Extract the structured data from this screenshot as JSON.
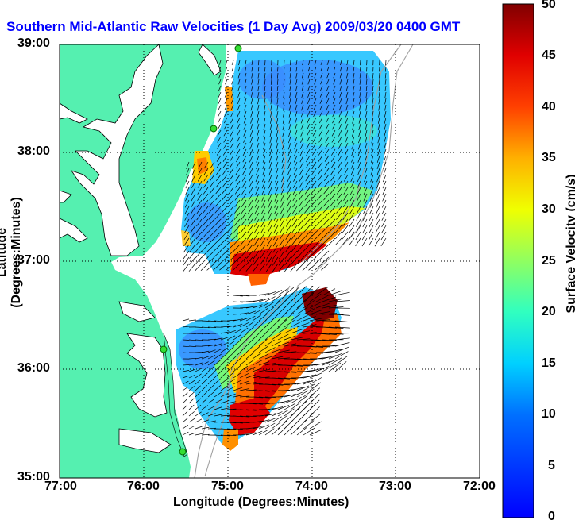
{
  "title": "Southern Mid-Atlantic Raw Velocities (1 Day Avg) 2009/03/20 0400 GMT",
  "map": {
    "x_label": "Longitude (Degrees:Minutes)",
    "y_label": "Latitude (Degrees:Minutes)",
    "x_ticks": [
      "77:00",
      "76:00",
      "75:00",
      "74:00",
      "73:00",
      "72:00"
    ],
    "y_ticks": [
      "39:00",
      "38:00",
      "37:00",
      "36:00",
      "35:00"
    ],
    "lon_range": [
      -77,
      -72
    ],
    "lat_range": [
      35,
      39
    ],
    "land_color": "#55f0b0",
    "grid": "dotted"
  },
  "colorbar": {
    "label": "Surface Velocity (cm/s)",
    "ticks": [
      "50",
      "45",
      "40",
      "35",
      "30",
      "25",
      "20",
      "15",
      "10",
      "5",
      "0"
    ],
    "range": [
      0,
      50
    ],
    "colormap": "jet"
  },
  "stations": [
    {
      "lon": -74.88,
      "lat": 39.0
    },
    {
      "lon": -75.15,
      "lat": 38.25
    },
    {
      "lon": -75.75,
      "lat": 36.2
    },
    {
      "lon": -75.55,
      "lat": 35.25
    }
  ]
}
